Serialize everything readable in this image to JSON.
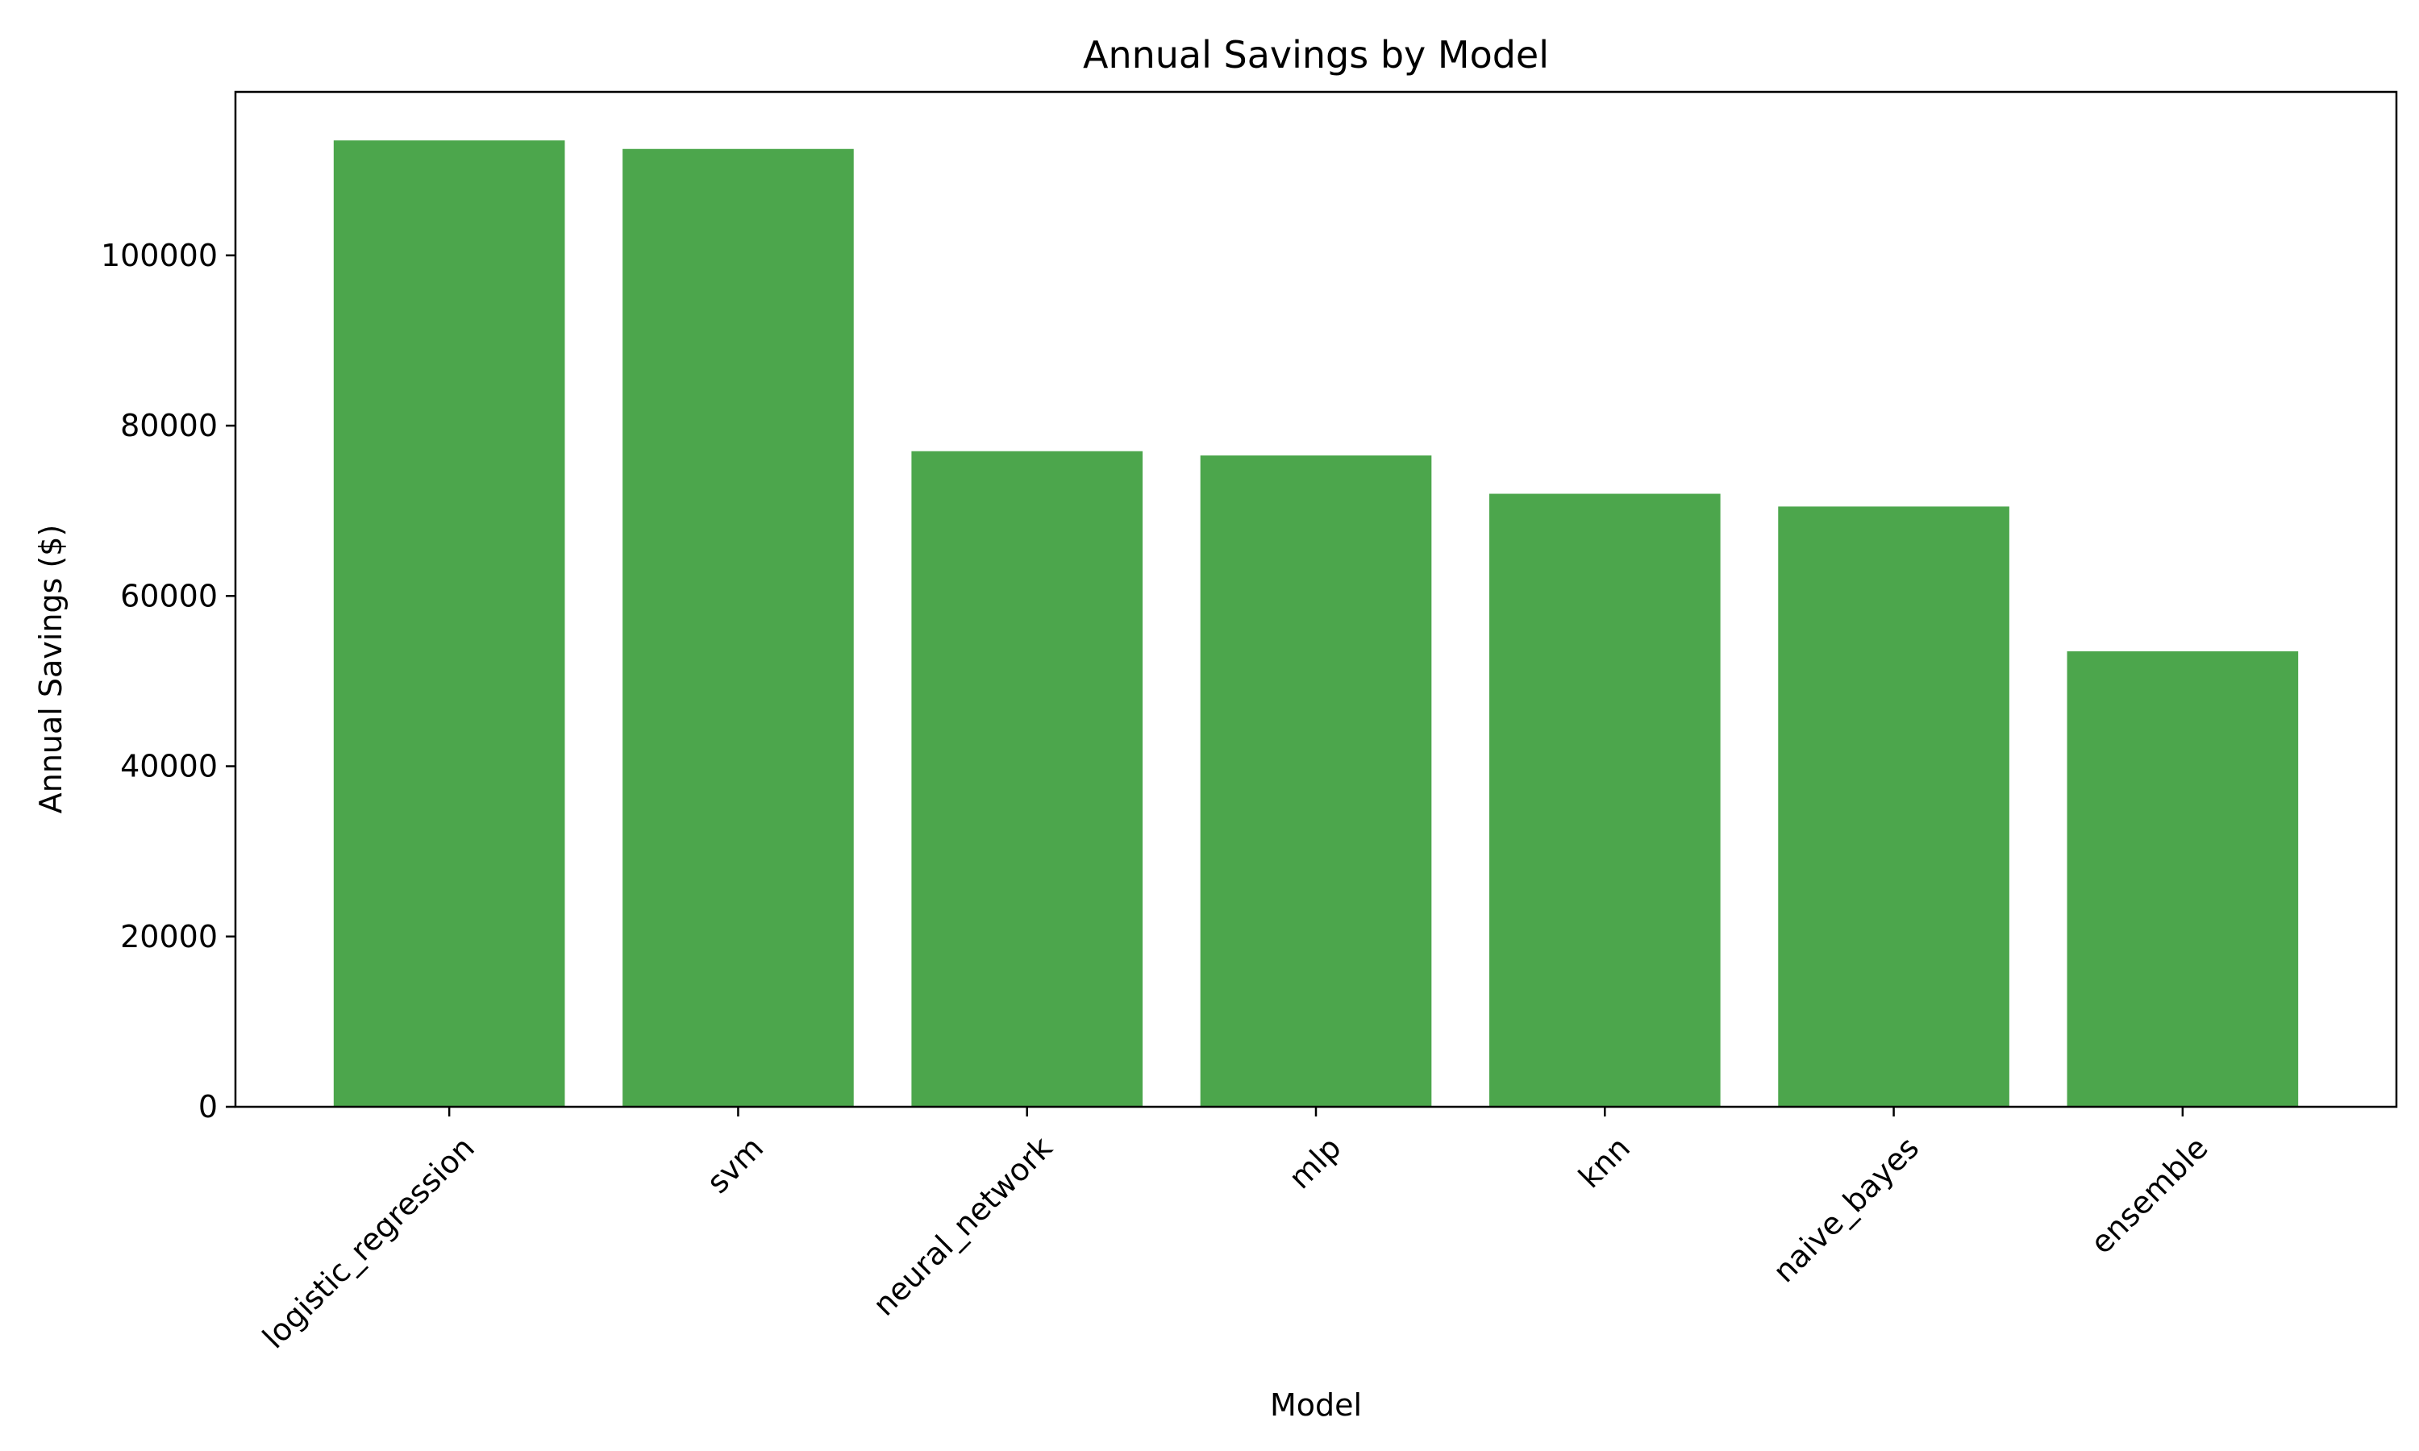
{
  "chart_data": {
    "type": "bar",
    "title": "Annual Savings by Model",
    "xlabel": "Model",
    "ylabel": "Annual Savings ($)",
    "categories": [
      "logistic_regression",
      "svm",
      "neural_network",
      "mlp",
      "knn",
      "naive_bayes",
      "ensemble"
    ],
    "values": [
      113500,
      112500,
      77000,
      76500,
      72000,
      70500,
      53500
    ],
    "ylim": [
      0,
      119200
    ],
    "yticks": [
      0,
      20000,
      40000,
      60000,
      80000,
      100000
    ],
    "bar_color": "#4ca64c",
    "grid": false,
    "legend": "none"
  }
}
